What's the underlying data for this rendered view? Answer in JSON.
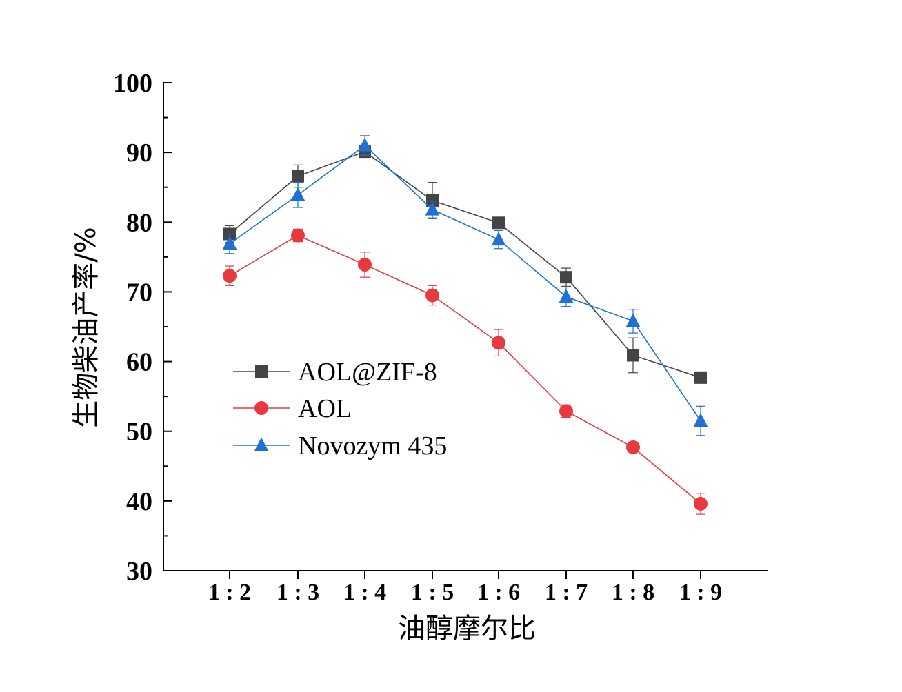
{
  "chart_data": {
    "type": "line",
    "categories": [
      "1 : 2",
      "1 : 3",
      "1 : 4",
      "1 : 5",
      "1 : 6",
      "1 : 7",
      "1 : 8",
      "1 : 9"
    ],
    "xlabel": "油醇摩尔比",
    "ylabel": "生物柴油产率/%",
    "ylim": [
      30,
      100
    ],
    "yticks": [
      "30",
      "40",
      "50",
      "60",
      "70",
      "80",
      "90",
      "100"
    ],
    "ytick_values": [
      30,
      40,
      50,
      60,
      70,
      80,
      90,
      100
    ],
    "legend_position": "middle-left",
    "grid": false,
    "series": [
      {
        "name": "AOL@ZIF-8",
        "marker": "square",
        "color": "#444444",
        "values": [
          78.3,
          86.6,
          90.1,
          83.1,
          79.9,
          72.1,
          60.9,
          57.7
        ],
        "errors": [
          1.2,
          1.6,
          0.5,
          2.6,
          0.4,
          1.3,
          2.5,
          0.4
        ]
      },
      {
        "name": "AOL",
        "marker": "circle",
        "color": "#e8393f",
        "values": [
          72.3,
          78.1,
          73.9,
          69.5,
          62.7,
          52.9,
          47.7,
          39.6
        ],
        "errors": [
          1.4,
          0.9,
          1.8,
          1.4,
          1.9,
          0.9,
          0.7,
          1.5
        ]
      },
      {
        "name": "Novozym 435",
        "marker": "triangle",
        "color": "#1f6fd6",
        "values": [
          76.9,
          83.9,
          91.0,
          81.8,
          77.5,
          69.3,
          65.8,
          51.5
        ],
        "errors": [
          1.4,
          1.8,
          1.4,
          1.2,
          1.3,
          1.4,
          1.7,
          2.1
        ]
      }
    ]
  }
}
